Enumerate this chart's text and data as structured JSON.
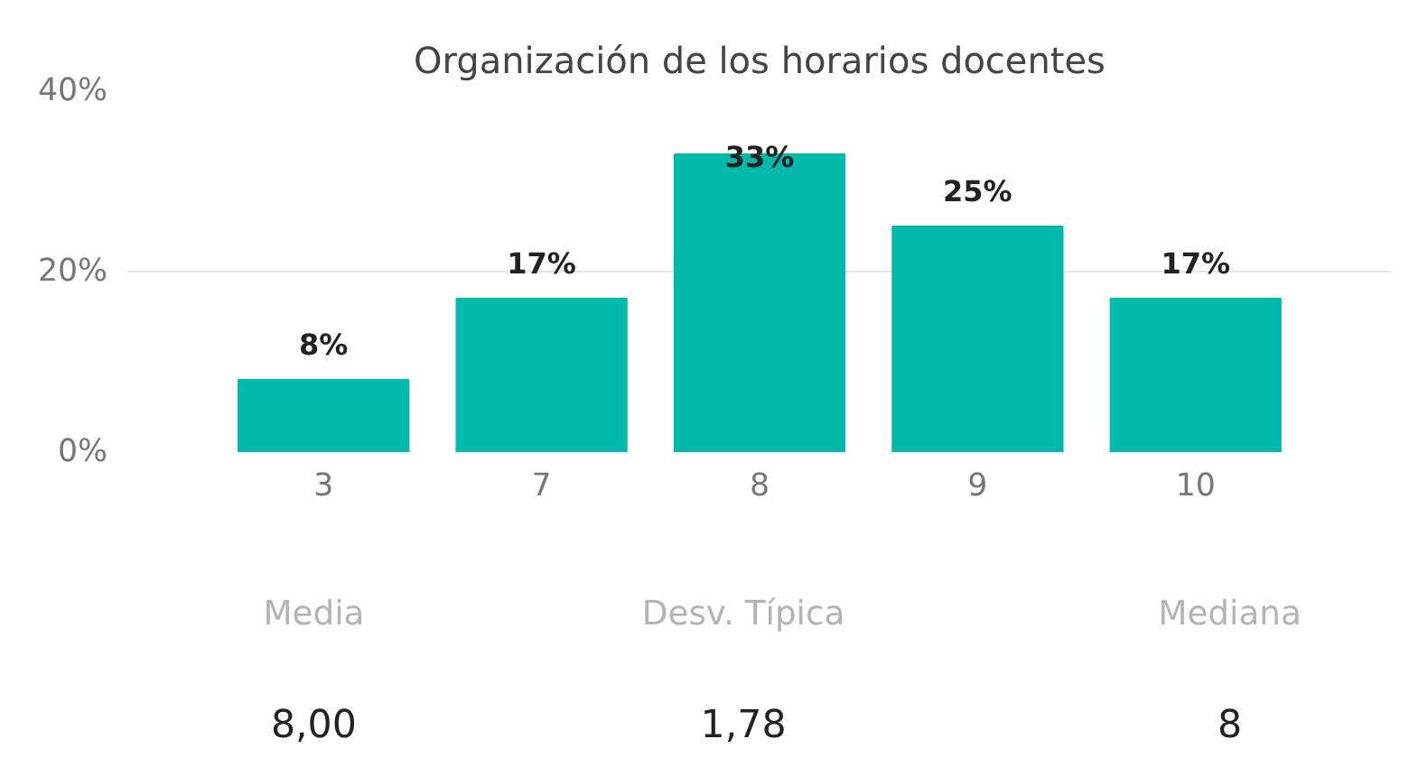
{
  "chart_data": {
    "type": "bar",
    "title": "Organización de los horarios docentes",
    "categories": [
      "3",
      "7",
      "8",
      "9",
      "10"
    ],
    "values": [
      8,
      17,
      33,
      25,
      17
    ],
    "value_labels": [
      "8%",
      "17%",
      "33%",
      "25%",
      "17%"
    ],
    "color": "#01b8aa",
    "ylim": [
      0,
      40
    ],
    "yticks": [
      {
        "value": 0,
        "label": "0%"
      },
      {
        "value": 20,
        "label": "20%"
      },
      {
        "value": 40,
        "label": "40%"
      }
    ],
    "grid": "y",
    "annotations": [
      "Media",
      "8,00",
      "Desv. Típica",
      "1,78",
      "Mediana",
      "8"
    ]
  }
}
